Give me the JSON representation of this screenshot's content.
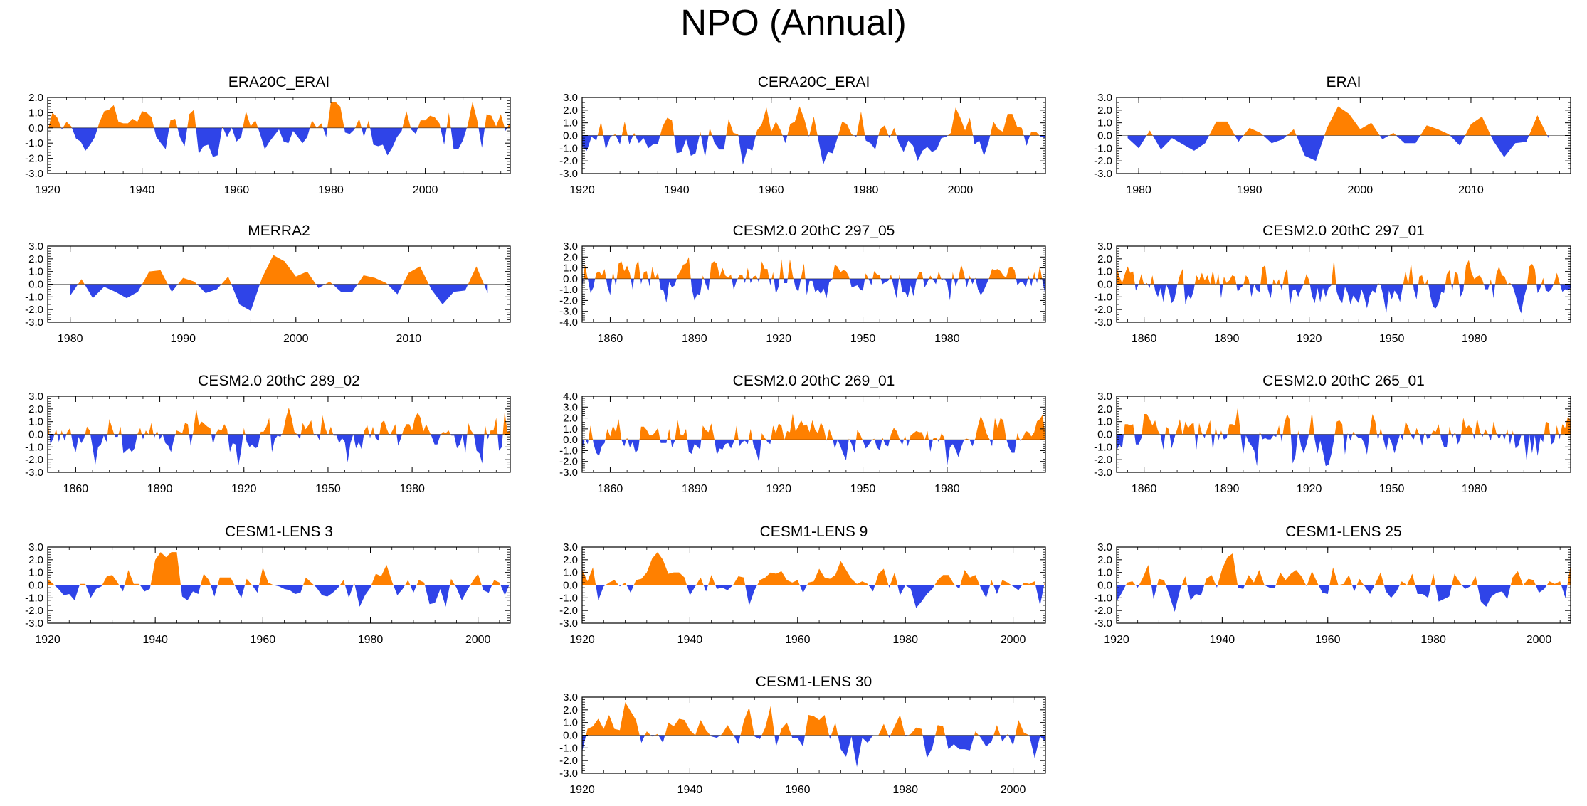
{
  "page": {
    "title": "NPO (Annual)"
  },
  "colors": {
    "positive": "#FF8000",
    "negative": "#2F44E8",
    "axis": "#000000",
    "zero": "#000000"
  },
  "chart_data": [
    {
      "type": "area",
      "title": "ERA20C_ERAI",
      "xlim": [
        1920,
        2018
      ],
      "xticks": [
        1920,
        1940,
        1960,
        1980,
        2000
      ],
      "ylim": [
        -3.0,
        2.0
      ],
      "yticks": [
        "2.0",
        "1.0",
        "0.0",
        "-1.0",
        "-2.0",
        "-3.0"
      ],
      "grid": false,
      "seed": 11
    },
    {
      "type": "area",
      "title": "CERA20C_ERAI",
      "xlim": [
        1920,
        2018
      ],
      "xticks": [
        1920,
        1940,
        1960,
        1980,
        2000
      ],
      "ylim": [
        -3.0,
        3.0
      ],
      "yticks": [
        "3.0",
        "2.0",
        "1.0",
        "0.0",
        "-1.0",
        "-2.0",
        "-3.0"
      ],
      "grid": false,
      "seed": 23
    },
    {
      "type": "area",
      "title": "ERAI",
      "xlim": [
        1978,
        2019
      ],
      "xticks": [
        1980,
        1990,
        2000,
        2010
      ],
      "ylim": [
        -3.0,
        3.0
      ],
      "yticks": [
        "3.0",
        "2.0",
        "1.0",
        "0.0",
        "-1.0",
        "-2.0",
        "-3.0"
      ],
      "grid": false,
      "x": [
        1979,
        1980,
        1981,
        1982,
        1983,
        1984,
        1985,
        1986,
        1987,
        1988,
        1989,
        1990,
        1991,
        1992,
        1993,
        1994,
        1995,
        1996,
        1997,
        1998,
        1999,
        2000,
        2001,
        2002,
        2003,
        2004,
        2005,
        2006,
        2007,
        2008,
        2009,
        2010,
        2011,
        2012,
        2013,
        2014,
        2015,
        2016,
        2017
      ],
      "y": [
        -0.2,
        -1.0,
        0.4,
        -1.1,
        -0.2,
        -0.7,
        -1.2,
        -0.6,
        1.1,
        1.1,
        -0.5,
        0.6,
        0.2,
        -0.6,
        -0.3,
        0.5,
        -1.6,
        -2.0,
        0.6,
        2.3,
        1.7,
        0.5,
        1.0,
        -0.3,
        0.2,
        -0.6,
        -0.6,
        0.8,
        0.5,
        0.1,
        -0.8,
        0.9,
        1.5,
        -0.4,
        -1.7,
        -0.6,
        -0.5,
        1.6,
        -0.2
      ]
    },
    {
      "type": "area",
      "title": "MERRA2",
      "xlim": [
        1978,
        2019
      ],
      "xticks": [
        1980,
        1990,
        2000,
        2010
      ],
      "ylim": [
        -3.0,
        3.0
      ],
      "yticks": [
        "3.0",
        "2.0",
        "1.0",
        "0.0",
        "-1.0",
        "-2.0",
        "-3.0"
      ],
      "grid": false,
      "x": [
        1980,
        1981,
        1982,
        1983,
        1984,
        1985,
        1986,
        1987,
        1988,
        1989,
        1990,
        1991,
        1992,
        1993,
        1994,
        1995,
        1996,
        1997,
        1998,
        1999,
        2000,
        2001,
        2002,
        2003,
        2004,
        2005,
        2006,
        2007,
        2008,
        2009,
        2010,
        2011,
        2012,
        2013,
        2014,
        2015,
        2016,
        2017
      ],
      "y": [
        -0.9,
        0.4,
        -1.1,
        -0.2,
        -0.6,
        -1.1,
        -0.6,
        1.0,
        1.1,
        -0.6,
        0.5,
        0.2,
        -0.7,
        -0.4,
        0.6,
        -1.6,
        -2.1,
        0.5,
        2.3,
        1.8,
        0.6,
        1.0,
        -0.3,
        0.2,
        -0.6,
        -0.6,
        0.7,
        0.5,
        0.1,
        -0.8,
        0.9,
        1.4,
        -0.4,
        -1.6,
        -0.6,
        -0.5,
        1.4,
        -0.7
      ]
    },
    {
      "type": "area",
      "title": "CESM2.0 20thC 297_05",
      "xlim": [
        1850,
        2015
      ],
      "xticks": [
        1860,
        1890,
        1920,
        1950,
        1980
      ],
      "ylim": [
        -4.0,
        3.0
      ],
      "yticks": [
        "3.0",
        "2.0",
        "1.0",
        "0.0",
        "-1.0",
        "-2.0",
        "-3.0",
        "-4.0"
      ],
      "grid": false,
      "seed": 37
    },
    {
      "type": "area",
      "title": "CESM2.0 20thC 297_01",
      "xlim": [
        1850,
        2015
      ],
      "xticks": [
        1860,
        1890,
        1920,
        1950,
        1980
      ],
      "ylim": [
        -3.0,
        3.0
      ],
      "yticks": [
        "3.0",
        "2.0",
        "1.0",
        "0.0",
        "-1.0",
        "-2.0",
        "-3.0"
      ],
      "grid": false,
      "seed": 41
    },
    {
      "type": "area",
      "title": "CESM2.0 20thC 289_02",
      "xlim": [
        1850,
        2015
      ],
      "xticks": [
        1860,
        1890,
        1920,
        1950,
        1980
      ],
      "ylim": [
        -3.0,
        3.0
      ],
      "yticks": [
        "3.0",
        "2.0",
        "1.0",
        "0.0",
        "-1.0",
        "-2.0",
        "-3.0"
      ],
      "grid": false,
      "seed": 53
    },
    {
      "type": "area",
      "title": "CESM2.0 20thC 269_01",
      "xlim": [
        1850,
        2015
      ],
      "xticks": [
        1860,
        1890,
        1920,
        1950,
        1980
      ],
      "ylim": [
        -3.0,
        4.0
      ],
      "yticks": [
        "4.0",
        "3.0",
        "2.0",
        "1.0",
        "0.0",
        "-1.0",
        "-2.0",
        "-3.0"
      ],
      "grid": false,
      "seed": 67
    },
    {
      "type": "area",
      "title": "CESM2.0 20thC 265_01",
      "xlim": [
        1850,
        2015
      ],
      "xticks": [
        1860,
        1890,
        1920,
        1950,
        1980
      ],
      "ylim": [
        -3.0,
        3.0
      ],
      "yticks": [
        "3.0",
        "2.0",
        "1.0",
        "0.0",
        "-1.0",
        "-2.0",
        "-3.0"
      ],
      "grid": false,
      "seed": 79
    },
    {
      "type": "area",
      "title": "CESM1-LENS 3",
      "xlim": [
        1920,
        2006
      ],
      "xticks": [
        1920,
        1940,
        1960,
        1980,
        2000
      ],
      "ylim": [
        -3.0,
        3.0
      ],
      "yticks": [
        "3.0",
        "2.0",
        "1.0",
        "0.0",
        "-1.0",
        "-2.0",
        "-3.0"
      ],
      "grid": false,
      "seed": 83
    },
    {
      "type": "area",
      "title": "CESM1-LENS 9",
      "xlim": [
        1920,
        2006
      ],
      "xticks": [
        1920,
        1940,
        1960,
        1980,
        2000
      ],
      "ylim": [
        -3.0,
        3.0
      ],
      "yticks": [
        "3.0",
        "2.0",
        "1.0",
        "0.0",
        "-1.0",
        "-2.0",
        "-3.0"
      ],
      "grid": false,
      "seed": 97
    },
    {
      "type": "area",
      "title": "CESM1-LENS 25",
      "xlim": [
        1920,
        2006
      ],
      "xticks": [
        1920,
        1940,
        1960,
        1980,
        2000
      ],
      "ylim": [
        -3.0,
        3.0
      ],
      "yticks": [
        "3.0",
        "2.0",
        "1.0",
        "0.0",
        "-1.0",
        "-2.0",
        "-3.0"
      ],
      "grid": false,
      "seed": 101
    },
    {
      "type": "area",
      "title": "CESM1-LENS 30",
      "xlim": [
        1920,
        2006
      ],
      "xticks": [
        1920,
        1940,
        1960,
        1980,
        2000
      ],
      "ylim": [
        -3.0,
        3.0
      ],
      "yticks": [
        "3.0",
        "2.0",
        "1.0",
        "0.0",
        "-1.0",
        "-2.0",
        "-3.0"
      ],
      "grid": false,
      "seed": 113
    }
  ]
}
